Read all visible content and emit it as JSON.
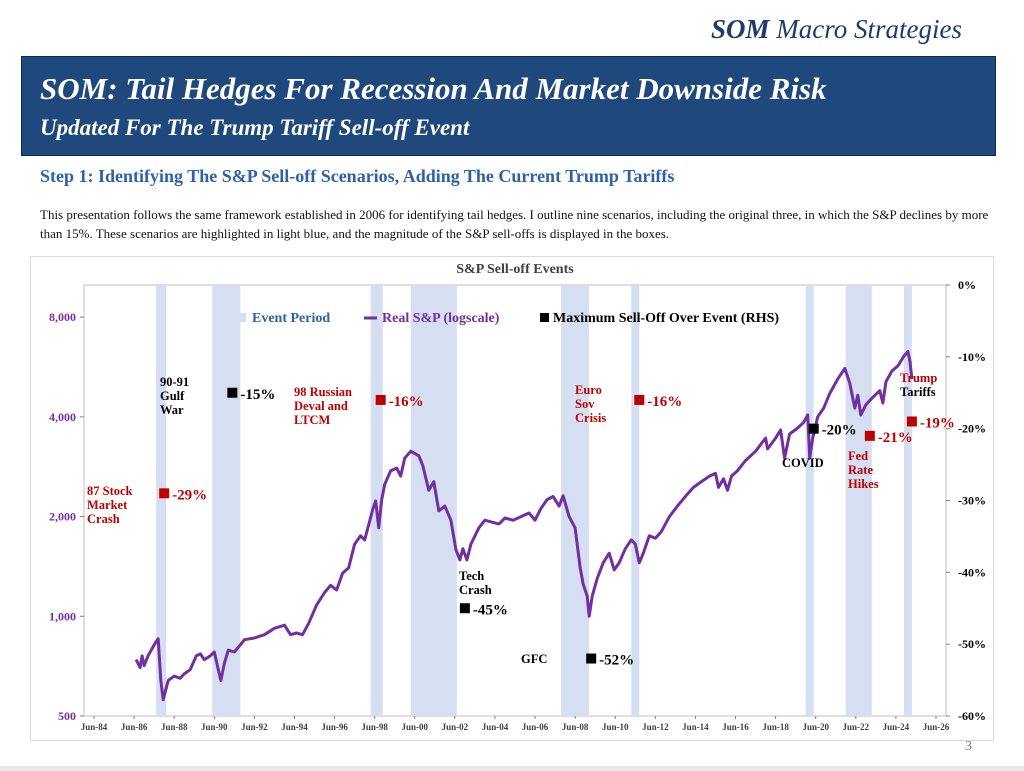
{
  "brand": {
    "strong": "SOM",
    "rest": "Macro Strategies"
  },
  "header": {
    "title": "SOM: Tail Hedges For Recession And Market Downside Risk",
    "subtitle": "Updated For The Trump Tariff Sell-off Event"
  },
  "step_title": "Step 1: Identifying The S&P  Sell-off Scenarios, Adding The Current Trump Tariffs",
  "description": "This presentation follows the same framework established in 2006 for identifying tail hedges. I outline nine scenarios, including the original three, in which the S&P declines by more than 15%. These scenarios are highlighted in light blue, and the magnitude of the S&P sell-offs is displayed in the boxes.",
  "page_number": "3",
  "colors": {
    "navy": "#1f497d",
    "line": "#7030a0",
    "shade": "#d6dff1",
    "red": "#c00000",
    "black": "#000000"
  },
  "chart_data": {
    "type": "line",
    "title": "S&P Sell-off Events",
    "x_ticks": [
      "Jun-84",
      "Jun-86",
      "Jun-88",
      "Jun-90",
      "Jun-92",
      "Jun-94",
      "Jun-96",
      "Jun-98",
      "Jun-00",
      "Jun-02",
      "Jun-04",
      "Jun-06",
      "Jun-08",
      "Jun-10",
      "Jun-12",
      "Jun-14",
      "Jun-16",
      "Jun-18",
      "Jun-20",
      "Jun-22",
      "Jun-24",
      "Jun-26"
    ],
    "x_range": [
      1984.0,
      2027.0
    ],
    "left_axis": {
      "scale": "log",
      "range": [
        500,
        10000
      ],
      "ticks": [
        500,
        1000,
        2000,
        4000,
        8000
      ],
      "tick_labels": [
        "500",
        "1,000",
        "2,000",
        "4,000",
        "8,000"
      ]
    },
    "right_axis": {
      "range": [
        -60,
        0
      ],
      "ticks": [
        0,
        -10,
        -20,
        -30,
        -40,
        -50,
        -60
      ],
      "tick_labels": [
        "0%",
        "-10%",
        "-20%",
        "-30%",
        "-40%",
        "-50%",
        "-60%"
      ]
    },
    "legend": [
      {
        "label": "Event Period",
        "kind": "shade"
      },
      {
        "label": "Real S&P (logscale)",
        "kind": "line"
      },
      {
        "label": "Maximum Sell-Off Over Event (RHS)",
        "kind": "marker"
      }
    ],
    "event_periods": [
      [
        1987.6,
        1988.1
      ],
      [
        1990.4,
        1991.8
      ],
      [
        1998.3,
        1998.9
      ],
      [
        2000.3,
        2002.6
      ],
      [
        2007.8,
        2009.2
      ],
      [
        2011.3,
        2011.7
      ],
      [
        2020.0,
        2020.4
      ],
      [
        2022.0,
        2023.3
      ],
      [
        2024.9,
        2025.3
      ]
    ],
    "series": [
      {
        "name": "Real S&P (logscale)",
        "points": [
          [
            1986.6,
            740
          ],
          [
            1986.8,
            700
          ],
          [
            1986.9,
            760
          ],
          [
            1987.0,
            710
          ],
          [
            1987.2,
            760
          ],
          [
            1987.4,
            800
          ],
          [
            1987.6,
            840
          ],
          [
            1987.7,
            855
          ],
          [
            1987.83,
            640
          ],
          [
            1987.95,
            560
          ],
          [
            1988.2,
            640
          ],
          [
            1988.5,
            660
          ],
          [
            1988.8,
            650
          ],
          [
            1989.0,
            670
          ],
          [
            1989.3,
            690
          ],
          [
            1989.6,
            760
          ],
          [
            1989.8,
            770
          ],
          [
            1990.0,
            740
          ],
          [
            1990.3,
            760
          ],
          [
            1990.5,
            780
          ],
          [
            1990.7,
            690
          ],
          [
            1990.83,
            640
          ],
          [
            1991.0,
            720
          ],
          [
            1991.2,
            790
          ],
          [
            1991.5,
            780
          ],
          [
            1991.8,
            820
          ],
          [
            1992.0,
            850
          ],
          [
            1992.5,
            860
          ],
          [
            1993.0,
            880
          ],
          [
            1993.5,
            920
          ],
          [
            1994.0,
            940
          ],
          [
            1994.3,
            880
          ],
          [
            1994.6,
            890
          ],
          [
            1994.9,
            880
          ],
          [
            1995.2,
            950
          ],
          [
            1995.6,
            1080
          ],
          [
            1996.0,
            1180
          ],
          [
            1996.3,
            1240
          ],
          [
            1996.6,
            1200
          ],
          [
            1996.9,
            1350
          ],
          [
            1997.2,
            1400
          ],
          [
            1997.5,
            1650
          ],
          [
            1997.8,
            1750
          ],
          [
            1998.0,
            1700
          ],
          [
            1998.4,
            2100
          ],
          [
            1998.55,
            2230
          ],
          [
            1998.7,
            1850
          ],
          [
            1998.85,
            2250
          ],
          [
            1999.0,
            2500
          ],
          [
            1999.3,
            2750
          ],
          [
            1999.6,
            2800
          ],
          [
            1999.8,
            2650
          ],
          [
            2000.0,
            3000
          ],
          [
            2000.3,
            3150
          ],
          [
            2000.7,
            3050
          ],
          [
            2000.9,
            2850
          ],
          [
            2001.2,
            2400
          ],
          [
            2001.45,
            2550
          ],
          [
            2001.7,
            2080
          ],
          [
            2002.0,
            2150
          ],
          [
            2002.3,
            1950
          ],
          [
            2002.55,
            1590
          ],
          [
            2002.75,
            1480
          ],
          [
            2002.9,
            1600
          ],
          [
            2003.1,
            1480
          ],
          [
            2003.3,
            1650
          ],
          [
            2003.7,
            1850
          ],
          [
            2004.0,
            1950
          ],
          [
            2004.4,
            1920
          ],
          [
            2004.7,
            1900
          ],
          [
            2005.0,
            1980
          ],
          [
            2005.4,
            1950
          ],
          [
            2005.8,
            2000
          ],
          [
            2006.2,
            2050
          ],
          [
            2006.5,
            1950
          ],
          [
            2006.8,
            2120
          ],
          [
            2007.1,
            2250
          ],
          [
            2007.4,
            2300
          ],
          [
            2007.7,
            2150
          ],
          [
            2007.9,
            2310
          ],
          [
            2008.2,
            2000
          ],
          [
            2008.5,
            1850
          ],
          [
            2008.75,
            1400
          ],
          [
            2008.9,
            1250
          ],
          [
            2009.1,
            1150
          ],
          [
            2009.2,
            1000
          ],
          [
            2009.35,
            1150
          ],
          [
            2009.6,
            1300
          ],
          [
            2009.9,
            1450
          ],
          [
            2010.2,
            1550
          ],
          [
            2010.45,
            1380
          ],
          [
            2010.7,
            1450
          ],
          [
            2011.0,
            1600
          ],
          [
            2011.3,
            1700
          ],
          [
            2011.5,
            1650
          ],
          [
            2011.7,
            1450
          ],
          [
            2011.9,
            1550
          ],
          [
            2012.2,
            1750
          ],
          [
            2012.5,
            1720
          ],
          [
            2012.8,
            1800
          ],
          [
            2013.2,
            2000
          ],
          [
            2013.6,
            2150
          ],
          [
            2014.0,
            2300
          ],
          [
            2014.4,
            2450
          ],
          [
            2014.8,
            2550
          ],
          [
            2015.2,
            2650
          ],
          [
            2015.5,
            2700
          ],
          [
            2015.65,
            2450
          ],
          [
            2015.9,
            2600
          ],
          [
            2016.1,
            2400
          ],
          [
            2016.3,
            2650
          ],
          [
            2016.6,
            2750
          ],
          [
            2017.0,
            2950
          ],
          [
            2017.5,
            3150
          ],
          [
            2018.0,
            3450
          ],
          [
            2018.1,
            3200
          ],
          [
            2018.5,
            3450
          ],
          [
            2018.75,
            3650
          ],
          [
            2018.95,
            3000
          ],
          [
            2019.2,
            3550
          ],
          [
            2019.6,
            3700
          ],
          [
            2019.9,
            3850
          ],
          [
            2020.1,
            4050
          ],
          [
            2020.2,
            3000
          ],
          [
            2020.35,
            3450
          ],
          [
            2020.6,
            4000
          ],
          [
            2020.9,
            4250
          ],
          [
            2021.2,
            4700
          ],
          [
            2021.6,
            5200
          ],
          [
            2021.95,
            5600
          ],
          [
            2022.2,
            5050
          ],
          [
            2022.45,
            4250
          ],
          [
            2022.6,
            4650
          ],
          [
            2022.75,
            4050
          ],
          [
            2023.0,
            4350
          ],
          [
            2023.3,
            4550
          ],
          [
            2023.7,
            4800
          ],
          [
            2023.85,
            4400
          ],
          [
            2024.0,
            5100
          ],
          [
            2024.3,
            5500
          ],
          [
            2024.6,
            5700
          ],
          [
            2024.9,
            6100
          ],
          [
            2025.1,
            6300
          ],
          [
            2025.2,
            5900
          ],
          [
            2025.3,
            5200
          ]
        ]
      }
    ],
    "selloff_markers": [
      {
        "x": 1988.0,
        "value": -29,
        "label": "-29%",
        "event": "87 Stock Market Crash",
        "color": "red"
      },
      {
        "x": 1991.4,
        "value": -15,
        "label": "-15%",
        "event": "90-91 Gulf War",
        "color": "black"
      },
      {
        "x": 1998.8,
        "value": -16,
        "label": "-16%",
        "event": "98 Russian Deval and LTCM",
        "color": "red"
      },
      {
        "x": 2003.0,
        "value": -45,
        "label": "-45%",
        "event": "Tech Crash",
        "color": "black"
      },
      {
        "x": 2009.3,
        "value": -52,
        "label": "-52%",
        "event": "GFC",
        "color": "black"
      },
      {
        "x": 2011.7,
        "value": -16,
        "label": "-16%",
        "event": "Euro Sov Crisis",
        "color": "red"
      },
      {
        "x": 2020.4,
        "value": -20,
        "label": "-20%",
        "event": "COVID",
        "color": "black"
      },
      {
        "x": 2023.2,
        "value": -21,
        "label": "-21%",
        "event": "Fed Rate Hikes",
        "color": "red"
      },
      {
        "x": 2025.3,
        "value": -19,
        "label": "-19%",
        "event": "Trump Tariffs",
        "color": "red"
      }
    ],
    "event_labels": [
      {
        "lines": [
          "87 Stock",
          "Market",
          "Crash"
        ],
        "color": "red"
      },
      {
        "lines": [
          "90-91",
          "Gulf",
          "War"
        ],
        "color": "black"
      },
      {
        "lines": [
          "98 Russian",
          "Deval and",
          "LTCM"
        ],
        "color": "red"
      },
      {
        "lines": [
          "Tech",
          "Crash"
        ],
        "color": "black"
      },
      {
        "lines": [
          "GFC"
        ],
        "color": "black"
      },
      {
        "lines": [
          "Euro",
          "Sov",
          "Crisis"
        ],
        "color": "red"
      },
      {
        "lines": [
          "COVID"
        ],
        "color": "black"
      },
      {
        "lines": [
          "Fed",
          "Rate",
          "Hikes"
        ],
        "color": "red"
      },
      {
        "lines": [
          "Trump",
          "Tariffs"
        ],
        "color": "red-black"
      }
    ]
  }
}
